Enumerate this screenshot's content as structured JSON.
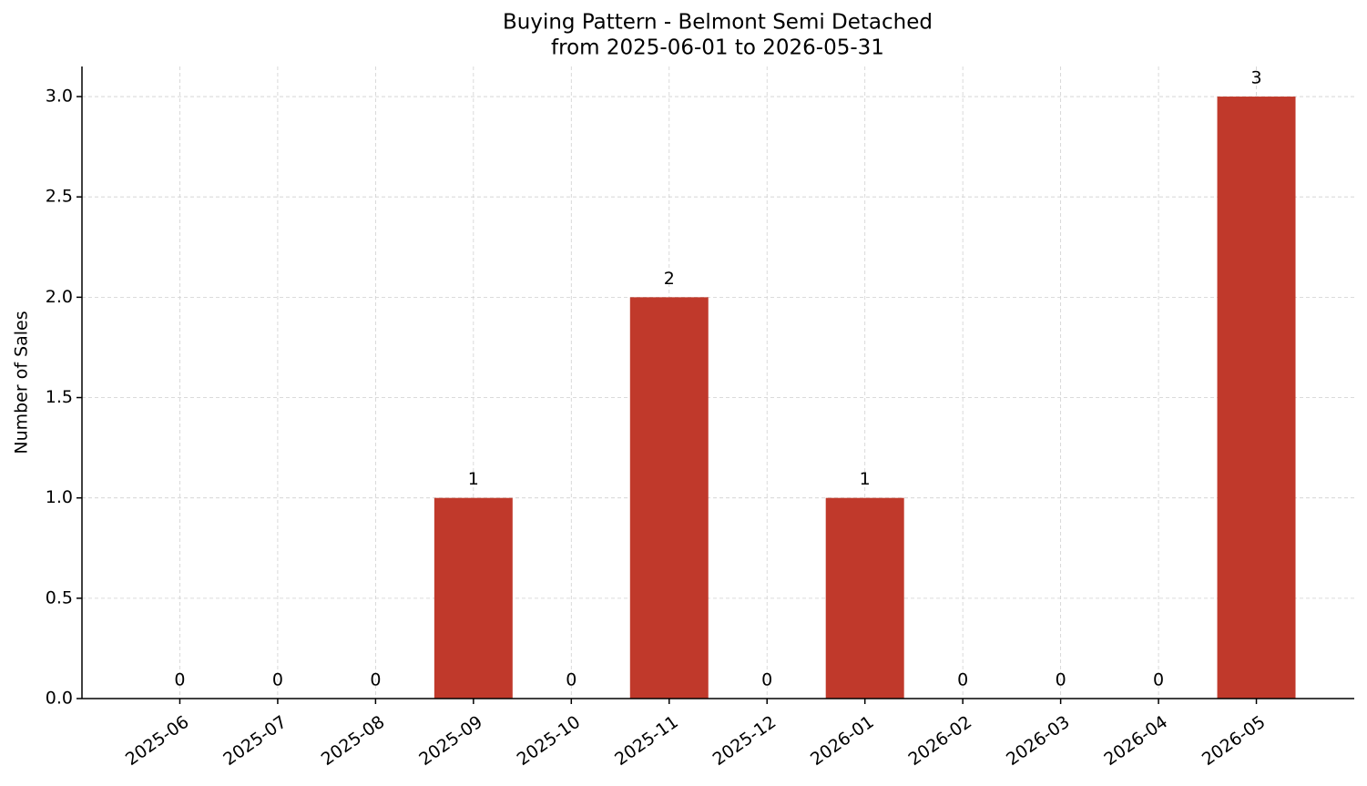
{
  "chart_data": {
    "type": "bar",
    "title": "Buying Pattern - Belmont Semi Detached",
    "subtitle": "from 2025-06-01 to 2026-05-31",
    "y_label": "Number of Sales",
    "categories": [
      "2025-06",
      "2025-07",
      "2025-08",
      "2025-09",
      "2025-10",
      "2025-11",
      "2025-12",
      "2026-01",
      "2026-02",
      "2026-03",
      "2026-04",
      "2026-05"
    ],
    "values": [
      0,
      0,
      0,
      1,
      0,
      2,
      0,
      1,
      0,
      0,
      0,
      3
    ],
    "color": "#c0392b",
    "ylim": [
      0,
      3.15
    ],
    "yticks": [
      {
        "value": 0,
        "label": "0.0"
      },
      {
        "value": 0.5,
        "label": "0.5"
      },
      {
        "value": 1,
        "label": "1.0"
      },
      {
        "value": 1.5,
        "label": "1.5"
      },
      {
        "value": 2,
        "label": "2.0"
      },
      {
        "value": 2.5,
        "label": "2.5"
      },
      {
        "value": 3,
        "label": "3.0"
      }
    ],
    "grid": true
  }
}
